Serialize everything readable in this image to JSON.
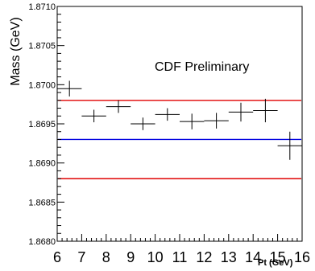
{
  "chart_data": {
    "type": "scatter",
    "title": "",
    "xlabel": "Pt (GeV)",
    "ylabel": "Mass (GeV)",
    "xlim": [
      6,
      16
    ],
    "ylim": [
      1.868,
      1.871
    ],
    "x_ticks": [
      "6",
      "7",
      "8",
      "9",
      "10",
      "11",
      "12",
      "13",
      "14",
      "15",
      "16"
    ],
    "y_ticks": [
      "1.8680",
      "1.8685",
      "1.8690",
      "1.8695",
      "1.8700",
      "1.8705",
      "1.8710"
    ],
    "annotation": "CDF Preliminary",
    "grid": false,
    "series": [
      {
        "points": [
          {
            "x": 6.5,
            "y": 1.86995,
            "xerr": 0.5,
            "yerr": 0.0001
          },
          {
            "x": 7.5,
            "y": 1.8696,
            "xerr": 0.5,
            "yerr": 8e-05
          },
          {
            "x": 8.5,
            "y": 1.86972,
            "xerr": 0.5,
            "yerr": 8e-05
          },
          {
            "x": 9.5,
            "y": 1.8695,
            "xerr": 0.5,
            "yerr": 8e-05
          },
          {
            "x": 10.5,
            "y": 1.86962,
            "xerr": 0.5,
            "yerr": 8e-05
          },
          {
            "x": 11.5,
            "y": 1.86953,
            "xerr": 0.5,
            "yerr": 0.0001
          },
          {
            "x": 12.5,
            "y": 1.86954,
            "xerr": 0.5,
            "yerr": 0.0001
          },
          {
            "x": 13.5,
            "y": 1.86965,
            "xerr": 0.5,
            "yerr": 0.00012
          },
          {
            "x": 14.5,
            "y": 1.86967,
            "xerr": 0.5,
            "yerr": 0.00015
          },
          {
            "x": 15.5,
            "y": 1.86922,
            "xerr": 0.5,
            "yerr": 0.00018
          }
        ]
      }
    ],
    "reference_lines": [
      {
        "y": 1.8698,
        "color": "#e00000"
      },
      {
        "y": 1.8693,
        "color": "#0000e0"
      },
      {
        "y": 1.8688,
        "color": "#e00000"
      }
    ]
  }
}
